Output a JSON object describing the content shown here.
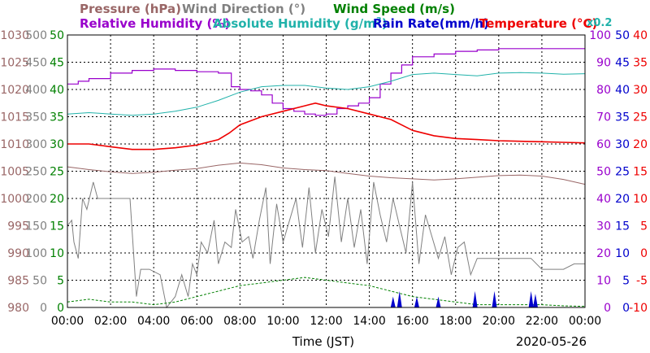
{
  "chart_data": {
    "type": "line",
    "date": "2020-05-26",
    "xlabel": "Time (JST)",
    "x_ticks": [
      "00:00",
      "02:00",
      "04:00",
      "06:00",
      "08:00",
      "10:00",
      "12:00",
      "14:00",
      "16:00",
      "18:00",
      "20:00",
      "22:00",
      "00:00"
    ],
    "axes": {
      "pressure": {
        "label": "Pressure (hPa)",
        "color": "#996666",
        "range": [
          980,
          1030
        ],
        "ticks": [
          980,
          985,
          990,
          995,
          1000,
          1005,
          1010,
          1015,
          1020,
          1025,
          1030
        ]
      },
      "wind_direction": {
        "label": "Wind Direction (°)",
        "color": "#808080",
        "range": [
          0,
          500
        ],
        "ticks": [
          0,
          50,
          100,
          150,
          200,
          250,
          300,
          350,
          400,
          450,
          500
        ]
      },
      "wind_speed": {
        "label": "Wind Speed (m/s)",
        "color": "#008000",
        "range": [
          0,
          50
        ],
        "ticks": [
          0,
          5,
          10,
          15,
          20,
          25,
          30,
          35,
          40,
          45,
          50
        ]
      },
      "relative_humidity": {
        "label": "Relative Humidity (%)",
        "color": "#9900cc",
        "range": [
          0,
          100
        ],
        "ticks": [
          0,
          10,
          20,
          30,
          40,
          50,
          60,
          70,
          80,
          90,
          100
        ]
      },
      "absolute_humidity": {
        "label": "Absolute Humidity (g/m³)",
        "scale_note": "x0.2",
        "color": "#20b2aa"
      },
      "rain_rate": {
        "label": "Rain Rate(mm/h)",
        "color": "#0000cc",
        "range": [
          0,
          50
        ],
        "ticks": [
          0,
          5,
          10,
          15,
          20,
          25,
          30,
          35,
          40,
          45,
          50
        ]
      },
      "temperature": {
        "label": "Temperature (°C)",
        "color": "#ee0000",
        "range": [
          -10,
          40
        ],
        "ticks": [
          -10,
          -5,
          0,
          5,
          10,
          15,
          20,
          25,
          30,
          35,
          40
        ]
      }
    },
    "series": [
      {
        "name": "Pressure (hPa)",
        "axis": "pressure",
        "x": [
          0,
          1,
          2,
          3,
          4,
          5,
          6,
          7,
          8,
          9,
          10,
          11,
          12,
          13,
          14,
          15,
          16,
          17,
          18,
          19,
          20,
          21,
          22,
          23,
          24
        ],
        "y": [
          1005.8,
          1005.3,
          1004.9,
          1004.6,
          1004.8,
          1005.2,
          1005.5,
          1006.1,
          1006.5,
          1006.2,
          1005.6,
          1005.3,
          1005.1,
          1004.6,
          1004.1,
          1003.8,
          1003.6,
          1003.4,
          1003.6,
          1003.9,
          1004.2,
          1004.3,
          1004.1,
          1003.5,
          1002.6
        ]
      },
      {
        "name": "Relative Humidity (%)",
        "axis": "relative_humidity",
        "x": [
          0,
          0.5,
          1,
          2,
          3,
          4,
          5,
          6,
          7,
          7.6,
          8,
          8.5,
          9,
          9.5,
          10,
          10.5,
          11,
          11.5,
          12,
          12.5,
          13,
          13.5,
          14,
          14.5,
          15,
          15.5,
          16,
          17,
          18,
          19,
          20,
          21,
          22,
          23,
          24
        ],
        "y": [
          82,
          83,
          84,
          86,
          87,
          87.5,
          87,
          86.5,
          86,
          81,
          80,
          79.5,
          78,
          75,
          73,
          72,
          71,
          70.5,
          71,
          73,
          74,
          75,
          77,
          82,
          86,
          89,
          92,
          93,
          94,
          94.5,
          95,
          95,
          95,
          95,
          95
        ]
      },
      {
        "name": "Absolute Humidity (g/m³)",
        "axis": "relative_humidity",
        "x": [
          0,
          1,
          2,
          3,
          4,
          5,
          6,
          7,
          8,
          9,
          10,
          11,
          12,
          13,
          14,
          15,
          16,
          17,
          18,
          19,
          20,
          21,
          22,
          23,
          24
        ],
        "y": [
          71,
          71.5,
          71,
          70.5,
          71,
          72,
          73.5,
          76,
          79,
          81,
          81.5,
          81.5,
          80.5,
          80,
          81,
          83,
          85.5,
          86,
          85.5,
          85,
          86,
          86.2,
          86,
          85.6,
          85.8
        ]
      },
      {
        "name": "Temperature (°C)",
        "axis": "temperature",
        "x": [
          0,
          1,
          2,
          3,
          4,
          5,
          6,
          7,
          7.5,
          8,
          9,
          10,
          11,
          11.5,
          12,
          13,
          14,
          15,
          16,
          17,
          18,
          19,
          20,
          21,
          22,
          23,
          24
        ],
        "y": [
          20,
          20,
          19.5,
          19,
          19,
          19.3,
          19.8,
          20.8,
          22,
          23.5,
          25,
          26,
          27,
          27.5,
          27,
          26.5,
          25.5,
          24.5,
          22.5,
          21.5,
          21,
          20.8,
          20.6,
          20.5,
          20.4,
          20.3,
          20.2
        ]
      },
      {
        "name": "Wind Direction (°)",
        "axis": "wind_direction",
        "x": [
          0,
          0.2,
          0.3,
          0.5,
          0.7,
          0.9,
          1.2,
          1.4,
          1.6,
          1.8,
          2.2,
          2.5,
          2.9,
          3.2,
          3.4,
          3.8,
          4.3,
          4.6,
          5.0,
          5.3,
          5.6,
          5.8,
          6.0,
          6.2,
          6.5,
          6.8,
          7.0,
          7.3,
          7.6,
          7.8,
          8.1,
          8.4,
          8.6,
          8.9,
          9.2,
          9.4,
          9.7,
          10,
          10.3,
          10.6,
          10.9,
          11.2,
          11.5,
          11.8,
          12.1,
          12.4,
          12.7,
          13,
          13.3,
          13.6,
          13.9,
          14.2,
          14.5,
          14.8,
          15.1,
          15.4,
          15.7,
          16,
          16.3,
          16.6,
          16.9,
          17.2,
          17.5,
          17.8,
          18.1,
          18.4,
          18.7,
          19,
          19.5,
          20,
          20.5,
          21,
          21.5,
          22,
          22.5,
          23,
          23.5,
          24
        ],
        "y": [
          150,
          160,
          120,
          90,
          200,
          180,
          230,
          200,
          200,
          200,
          200,
          200,
          200,
          20,
          70,
          70,
          60,
          0,
          20,
          60,
          20,
          80,
          60,
          120,
          100,
          160,
          80,
          120,
          110,
          180,
          120,
          130,
          90,
          160,
          220,
          80,
          190,
          120,
          160,
          200,
          110,
          220,
          100,
          180,
          130,
          240,
          120,
          200,
          110,
          180,
          80,
          230,
          170,
          120,
          200,
          150,
          100,
          230,
          80,
          170,
          130,
          90,
          130,
          60,
          110,
          120,
          60,
          90,
          90,
          90,
          90,
          90,
          90,
          70,
          70,
          70,
          80,
          80
        ]
      },
      {
        "name": "Wind Speed (m/s)",
        "axis": "wind_speed",
        "x": [
          0,
          1,
          2,
          3,
          4,
          5,
          6,
          7,
          8,
          9,
          10,
          11,
          12,
          13,
          14,
          15,
          16,
          17,
          18,
          19,
          20,
          21,
          22,
          23,
          24
        ],
        "y": [
          1,
          1.5,
          1,
          1,
          0.5,
          1,
          2,
          3,
          4,
          4.5,
          5,
          5.5,
          5,
          4.5,
          4,
          3,
          2,
          1.5,
          1,
          0.5,
          0.5,
          0.5,
          0.5,
          0.3,
          0.2
        ]
      },
      {
        "name": "Rain Rate(mm/h)",
        "axis": "rain_rate",
        "x": [
          15.1,
          15.4,
          16.2,
          17.2,
          18.9,
          19.8,
          21.5,
          21.7
        ],
        "y": [
          2,
          3,
          2,
          2,
          3,
          3,
          3,
          2.5
        ]
      }
    ]
  },
  "header": {
    "row1": [
      {
        "text": "Pressure (hPa)",
        "color": "#996666"
      },
      {
        "text": "Wind Direction (°)",
        "color": "#808080"
      },
      {
        "text": "Wind Speed (m/s)",
        "color": "#008000"
      }
    ],
    "row2": [
      {
        "text": "Relative Humidity (%)",
        "color": "#9900cc"
      },
      {
        "text": "Absolute Humidity (g/m",
        "sup": "3",
        "tail": ")",
        "color": "#20b2aa"
      },
      {
        "text": "Rain Rate(mm/h)",
        "color": "#0000cc"
      },
      {
        "text": "Temperature (°C)",
        "color": "#ee0000"
      }
    ],
    "scale_note": "x0.2"
  }
}
